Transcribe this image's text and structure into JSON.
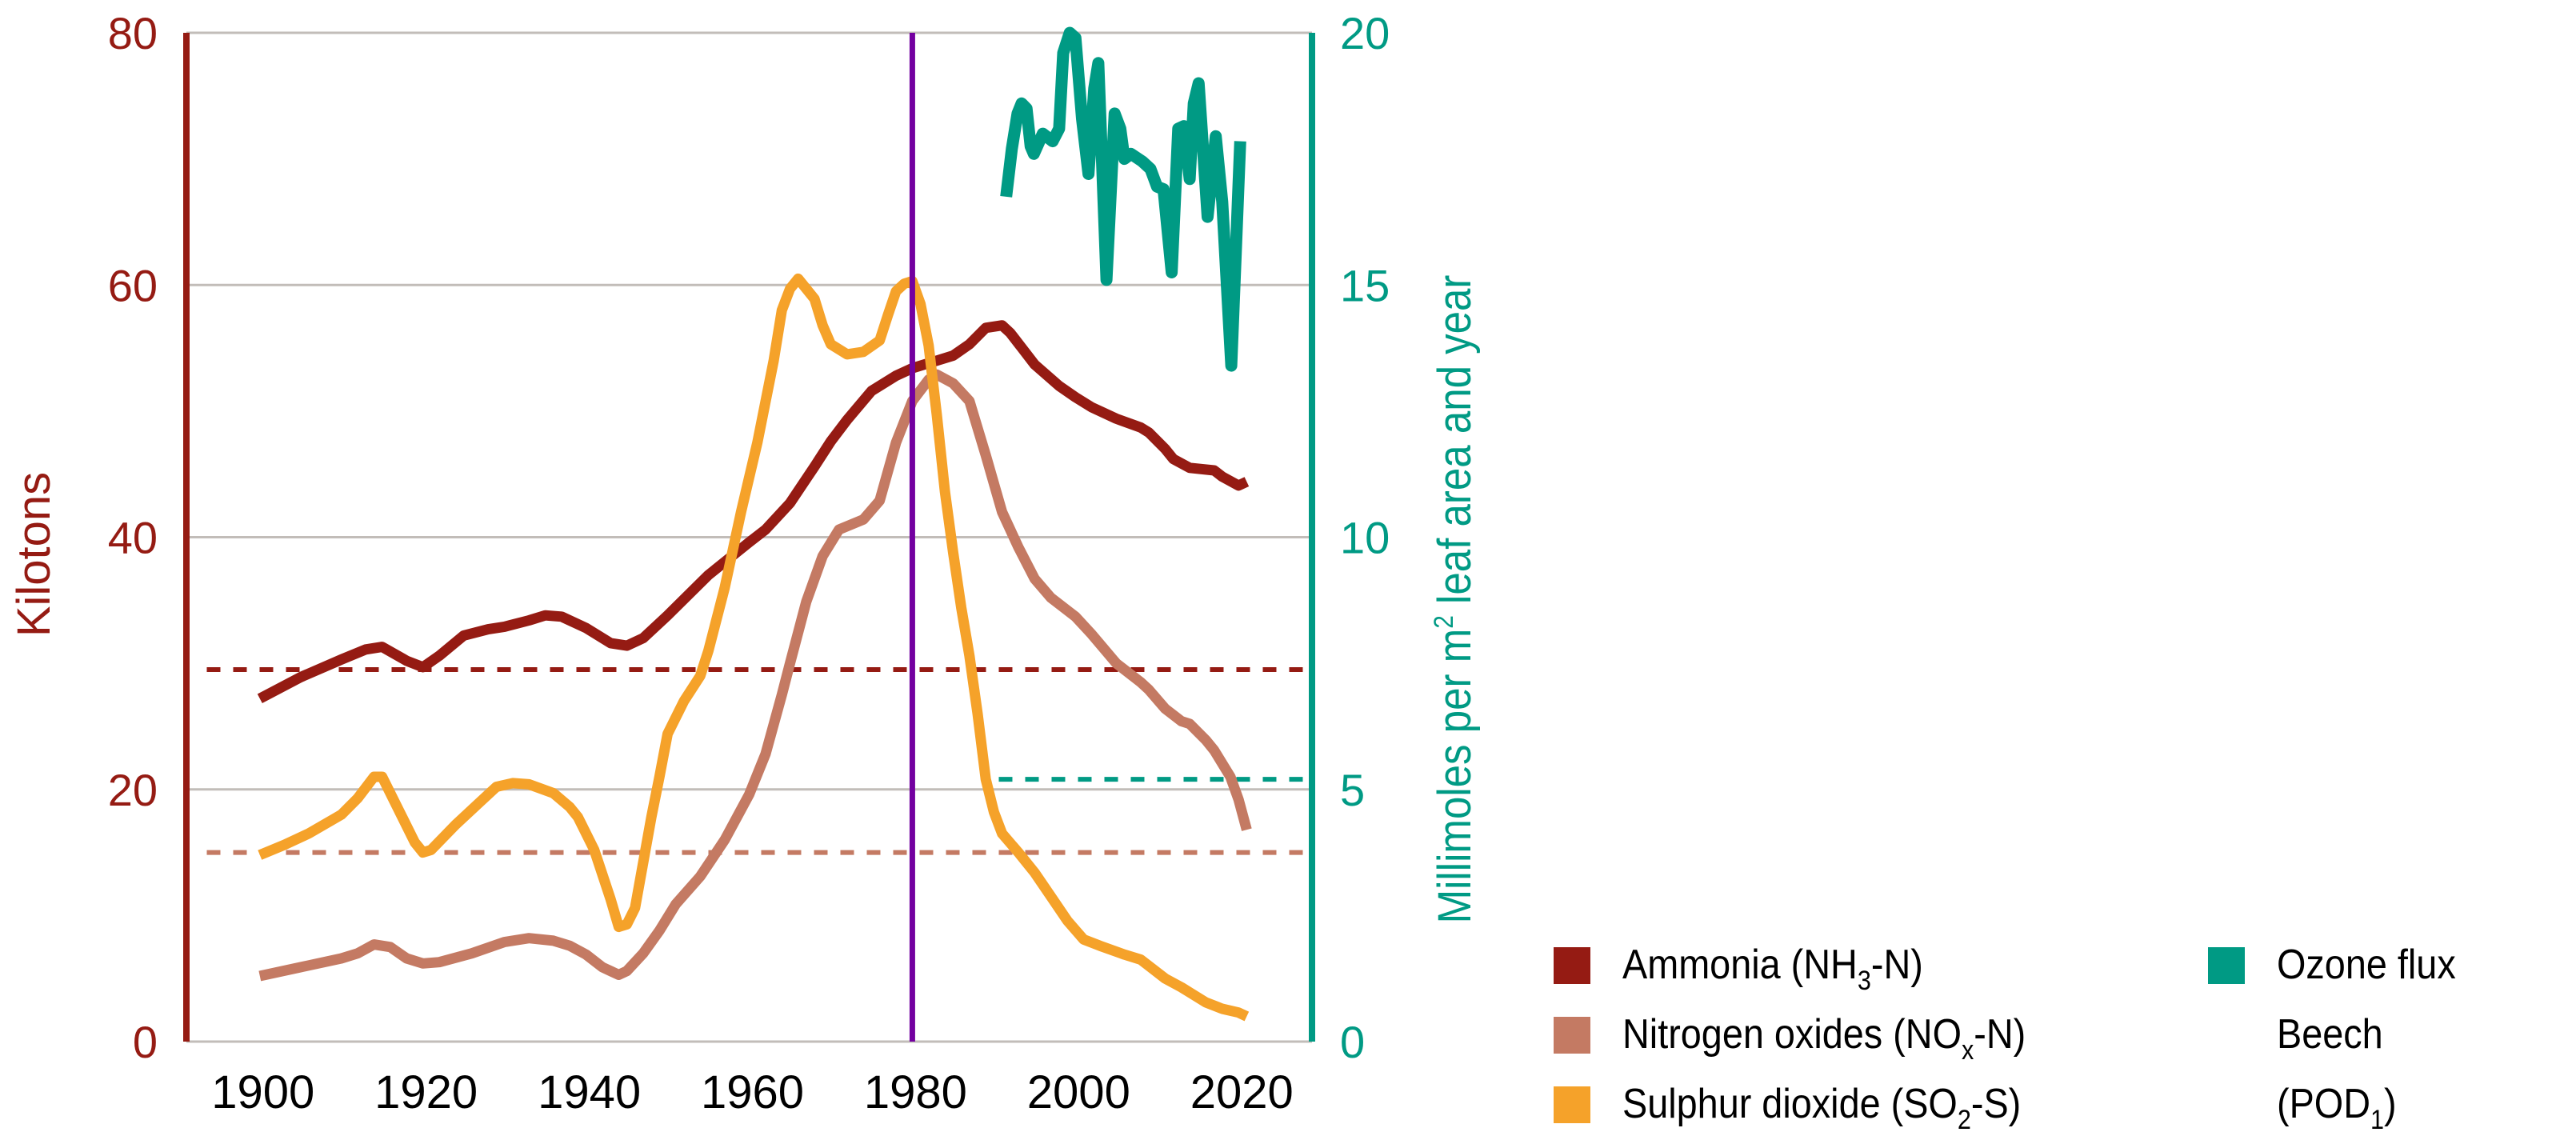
{
  "chart_data": {
    "type": "line",
    "title": "",
    "xlabel": "",
    "ylabel_left": "Kilotons",
    "ylabel_right": {
      "pre": "Millimoles per m",
      "sup": "2",
      "post": " leaf area and year"
    },
    "x_range": [
      1891,
      2029
    ],
    "x_ticks": [
      1900,
      1920,
      1940,
      1960,
      1980,
      2000,
      2020
    ],
    "x_tick_labels": [
      "1900",
      "1920",
      "1940",
      "1960",
      "1980",
      "2000",
      "2020"
    ],
    "y_left_range": [
      0,
      80
    ],
    "y_left_ticks": [
      0,
      20,
      40,
      60,
      80
    ],
    "y_left_tick_labels": [
      "0",
      "20",
      "40",
      "60",
      "80"
    ],
    "y_right_range": [
      0,
      20
    ],
    "y_right_ticks": [
      0,
      5,
      10,
      15,
      20
    ],
    "y_right_tick_labels": [
      "0",
      "5",
      "10",
      "15",
      "20"
    ],
    "grid": true,
    "legend_position": "bottom-right",
    "colors": {
      "ammonia": "#951b13",
      "nitrogen": "#c47a63",
      "sulphur": "#f5a22a",
      "ozone": "#009a84",
      "marker_1980": "#7300a0",
      "grid": "#c2bdb9",
      "tick_text": "#000000"
    },
    "vertical_marker": {
      "x": 1980,
      "color": "#7300a0"
    },
    "series": [
      {
        "id": "ammonia",
        "name": "Ammonia (NH3-N)",
        "axis": "left",
        "color": "#951b13",
        "points": [
          [
            1900,
            27.2
          ],
          [
            1905,
            28.9
          ],
          [
            1910,
            30.3
          ],
          [
            1913,
            31.1
          ],
          [
            1915,
            31.3
          ],
          [
            1918,
            30.2
          ],
          [
            1920,
            29.7
          ],
          [
            1922,
            30.6
          ],
          [
            1925,
            32.2
          ],
          [
            1928,
            32.7
          ],
          [
            1930,
            32.9
          ],
          [
            1933,
            33.4
          ],
          [
            1935,
            33.8
          ],
          [
            1937,
            33.7
          ],
          [
            1940,
            32.8
          ],
          [
            1943,
            31.6
          ],
          [
            1945,
            31.4
          ],
          [
            1947,
            32.0
          ],
          [
            1950,
            33.8
          ],
          [
            1955,
            37.0
          ],
          [
            1960,
            39.6
          ],
          [
            1962,
            40.6
          ],
          [
            1965,
            42.7
          ],
          [
            1968,
            45.6
          ],
          [
            1970,
            47.6
          ],
          [
            1972,
            49.3
          ],
          [
            1975,
            51.6
          ],
          [
            1978,
            52.8
          ],
          [
            1980,
            53.4
          ],
          [
            1983,
            54.0
          ],
          [
            1985,
            54.4
          ],
          [
            1987,
            55.3
          ],
          [
            1989,
            56.6
          ],
          [
            1991,
            56.8
          ],
          [
            1992,
            56.2
          ],
          [
            1995,
            53.7
          ],
          [
            1998,
            52.0
          ],
          [
            2000,
            51.1
          ],
          [
            2002,
            50.3
          ],
          [
            2005,
            49.4
          ],
          [
            2008,
            48.7
          ],
          [
            2009,
            48.3
          ],
          [
            2011,
            47.0
          ],
          [
            2012,
            46.2
          ],
          [
            2014,
            45.5
          ],
          [
            2017,
            45.3
          ],
          [
            2018,
            44.8
          ],
          [
            2020,
            44.1
          ],
          [
            2021,
            44.4
          ]
        ]
      },
      {
        "id": "nitrogen",
        "name": "Nitrogen oxides (NOx-N)",
        "axis": "left",
        "color": "#c47a63",
        "points": [
          [
            1900,
            5.2
          ],
          [
            1905,
            5.9
          ],
          [
            1910,
            6.6
          ],
          [
            1912,
            7.0
          ],
          [
            1914,
            7.7
          ],
          [
            1916,
            7.5
          ],
          [
            1918,
            6.6
          ],
          [
            1920,
            6.2
          ],
          [
            1922,
            6.3
          ],
          [
            1926,
            7.0
          ],
          [
            1930,
            7.9
          ],
          [
            1933,
            8.2
          ],
          [
            1936,
            8.0
          ],
          [
            1938,
            7.6
          ],
          [
            1940,
            6.9
          ],
          [
            1942,
            5.9
          ],
          [
            1944,
            5.3
          ],
          [
            1945,
            5.6
          ],
          [
            1947,
            7.0
          ],
          [
            1949,
            8.8
          ],
          [
            1951,
            10.9
          ],
          [
            1954,
            13.1
          ],
          [
            1957,
            16.0
          ],
          [
            1960,
            19.6
          ],
          [
            1962,
            22.8
          ],
          [
            1964,
            27.5
          ],
          [
            1965,
            30.0
          ],
          [
            1967,
            34.9
          ],
          [
            1969,
            38.5
          ],
          [
            1971,
            40.6
          ],
          [
            1974,
            41.4
          ],
          [
            1976,
            42.9
          ],
          [
            1978,
            47.5
          ],
          [
            1980,
            50.8
          ],
          [
            1982,
            52.5
          ],
          [
            1983,
            52.9
          ],
          [
            1985,
            52.2
          ],
          [
            1987,
            50.8
          ],
          [
            1989,
            46.5
          ],
          [
            1991,
            42.0
          ],
          [
            1993,
            39.2
          ],
          [
            1995,
            36.7
          ],
          [
            1997,
            35.2
          ],
          [
            2000,
            33.7
          ],
          [
            2002,
            32.3
          ],
          [
            2005,
            30.0
          ],
          [
            2008,
            28.5
          ],
          [
            2009,
            27.9
          ],
          [
            2011,
            26.4
          ],
          [
            2013,
            25.4
          ],
          [
            2014,
            25.2
          ],
          [
            2016,
            23.9
          ],
          [
            2017,
            23.1
          ],
          [
            2019,
            21.0
          ],
          [
            2020,
            19.2
          ],
          [
            2021,
            16.8
          ]
        ]
      },
      {
        "id": "sulphur",
        "name": "Sulphur dioxide (SO2-S)",
        "axis": "left",
        "color": "#f5a22a",
        "points": [
          [
            1900,
            14.8
          ],
          [
            1903,
            15.6
          ],
          [
            1906,
            16.5
          ],
          [
            1910,
            18.0
          ],
          [
            1912,
            19.3
          ],
          [
            1914,
            21.0
          ],
          [
            1915,
            21.0
          ],
          [
            1917,
            18.4
          ],
          [
            1919,
            15.8
          ],
          [
            1920,
            15.0
          ],
          [
            1921,
            15.2
          ],
          [
            1924,
            17.2
          ],
          [
            1927,
            19.0
          ],
          [
            1929,
            20.2
          ],
          [
            1931,
            20.5
          ],
          [
            1933,
            20.4
          ],
          [
            1936,
            19.7
          ],
          [
            1938,
            18.6
          ],
          [
            1939,
            17.8
          ],
          [
            1941,
            15.2
          ],
          [
            1943,
            11.3
          ],
          [
            1944,
            9.1
          ],
          [
            1945,
            9.3
          ],
          [
            1946,
            10.6
          ],
          [
            1948,
            17.8
          ],
          [
            1949,
            21.0
          ],
          [
            1950,
            24.4
          ],
          [
            1952,
            27.0
          ],
          [
            1954,
            29.0
          ],
          [
            1955,
            31.0
          ],
          [
            1957,
            36.0
          ],
          [
            1959,
            42.0
          ],
          [
            1961,
            47.5
          ],
          [
            1963,
            54.0
          ],
          [
            1964,
            58.0
          ],
          [
            1965,
            59.7
          ],
          [
            1966,
            60.5
          ],
          [
            1968,
            58.9
          ],
          [
            1969,
            56.8
          ],
          [
            1970,
            55.3
          ],
          [
            1972,
            54.5
          ],
          [
            1974,
            54.7
          ],
          [
            1976,
            55.6
          ],
          [
            1977,
            57.6
          ],
          [
            1978,
            59.5
          ],
          [
            1979,
            60.1
          ],
          [
            1980,
            60.3
          ],
          [
            1981,
            58.5
          ],
          [
            1982,
            55.2
          ],
          [
            1983,
            49.7
          ],
          [
            1984,
            43.6
          ],
          [
            1985,
            38.8
          ],
          [
            1986,
            34.4
          ],
          [
            1987,
            30.6
          ],
          [
            1988,
            26.0
          ],
          [
            1989,
            20.8
          ],
          [
            1990,
            18.2
          ],
          [
            1991,
            16.5
          ],
          [
            1993,
            15.0
          ],
          [
            1995,
            13.4
          ],
          [
            1997,
            11.5
          ],
          [
            1999,
            9.6
          ],
          [
            2001,
            8.1
          ],
          [
            2003,
            7.6
          ],
          [
            2006,
            6.9
          ],
          [
            2008,
            6.5
          ],
          [
            2009,
            6.0
          ],
          [
            2011,
            5.0
          ],
          [
            2013,
            4.3
          ],
          [
            2014,
            3.9
          ],
          [
            2016,
            3.1
          ],
          [
            2018,
            2.6
          ],
          [
            2020,
            2.3
          ],
          [
            2021,
            2.0
          ]
        ]
      },
      {
        "id": "ozone",
        "name": "Ozone flux Beech (POD1)",
        "axis": "right",
        "color": "#009a84",
        "points": [
          [
            1991.5,
            16.75
          ],
          [
            1992.2,
            17.7
          ],
          [
            1992.9,
            18.4
          ],
          [
            1993.4,
            18.6
          ],
          [
            1994.0,
            18.5
          ],
          [
            1994.5,
            17.75
          ],
          [
            1994.9,
            17.6
          ],
          [
            1996.0,
            18.0
          ],
          [
            1997.2,
            17.85
          ],
          [
            1998.0,
            18.1
          ],
          [
            1998.5,
            19.6
          ],
          [
            1999.3,
            20.0
          ],
          [
            2000.0,
            19.9
          ],
          [
            2000.8,
            18.3
          ],
          [
            2001.6,
            17.2
          ],
          [
            2002.3,
            18.9
          ],
          [
            2002.8,
            19.4
          ],
          [
            2003.8,
            15.1
          ],
          [
            2004.8,
            18.4
          ],
          [
            2005.5,
            18.1
          ],
          [
            2006.0,
            17.5
          ],
          [
            2006.8,
            17.6
          ],
          [
            2008.2,
            17.45
          ],
          [
            2009.2,
            17.3
          ],
          [
            2010.0,
            16.95
          ],
          [
            2010.8,
            16.9
          ],
          [
            2011.8,
            15.25
          ],
          [
            2012.6,
            18.1
          ],
          [
            2013.3,
            18.15
          ],
          [
            2014.0,
            17.1
          ],
          [
            2014.5,
            18.6
          ],
          [
            2015.1,
            19.0
          ],
          [
            2016.2,
            16.35
          ],
          [
            2017.2,
            17.95
          ],
          [
            2018.0,
            16.65
          ],
          [
            2019.1,
            13.4
          ],
          [
            2020.2,
            17.85
          ]
        ]
      }
    ],
    "reference_lines": [
      {
        "id": "ammonia-target",
        "series": "ammonia",
        "axis": "left",
        "value": 29.5,
        "x_start": 1893.5,
        "x_end": 2028,
        "color": "#951b13",
        "style": "dashed"
      },
      {
        "id": "nitrogen-target",
        "series": "nitrogen",
        "axis": "left",
        "value": 15.0,
        "x_start": 1893.5,
        "x_end": 2028,
        "color": "#c47a63",
        "style": "dashed"
      },
      {
        "id": "ozone-target",
        "series": "ozone",
        "axis": "right",
        "value": 5.2,
        "x_start": 1990.6,
        "x_end": 2028,
        "color": "#009a84",
        "style": "dashed"
      }
    ],
    "legend": [
      {
        "id": "ammonia",
        "color": "#951b13",
        "lines": [
          {
            "pre": "Ammonia (NH",
            "sub": "3",
            "post": "-N)"
          }
        ]
      },
      {
        "id": "nitrogen",
        "color": "#c47a63",
        "lines": [
          {
            "pre": "Nitrogen oxides (NO",
            "sub": "x",
            "post": "-N)"
          }
        ]
      },
      {
        "id": "sulphur",
        "color": "#f5a22a",
        "lines": [
          {
            "pre": "Sulphur dioxide (SO",
            "sub": "2",
            "post": "-S)"
          }
        ]
      },
      {
        "id": "ozone",
        "color": "#009a84",
        "lines": [
          {
            "pre": "Ozone flux",
            "sub": "",
            "post": ""
          },
          {
            "pre": "Beech",
            "sub": "",
            "post": ""
          },
          {
            "pre": "(POD",
            "sub": "1",
            "post": ")"
          }
        ]
      }
    ]
  }
}
